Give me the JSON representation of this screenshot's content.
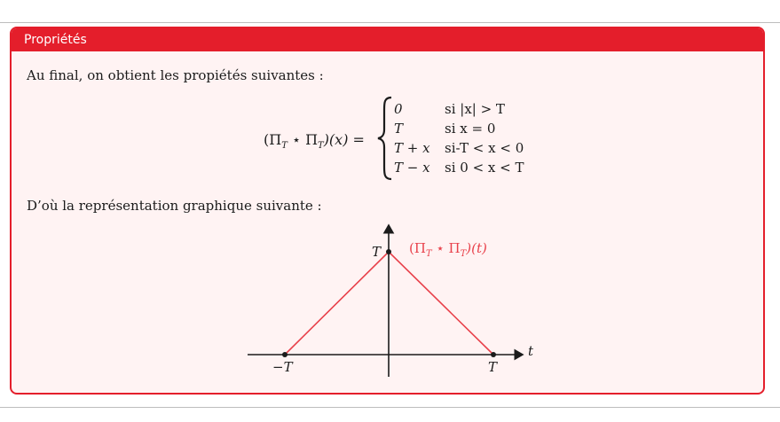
{
  "box": {
    "title": "Propriétés",
    "intro": "Au final, on obtient les propiétés suivantes :",
    "repr": "D’où la représentation graphique suivante :"
  },
  "equation": {
    "lhs_open": "(",
    "lhs_pi": "Π",
    "lhs_sub": "T",
    "lhs_star": " ⋆ ",
    "lhs_close": ")(x) = ",
    "cases": [
      {
        "value": "0",
        "condition": "si |x| > T"
      },
      {
        "value": "T",
        "condition": "si x = 0"
      },
      {
        "value": "T + x",
        "condition": "si-T < x < 0"
      },
      {
        "value": "T − x",
        "condition": "si 0 < x < T"
      }
    ]
  },
  "graph": {
    "axis_label_x": "t",
    "label_peak": "T",
    "label_left": "−T",
    "label_right": "T",
    "curve_label": "(Π",
    "curve_label_sub": "T",
    "curve_label_mid": " ⋆ Π",
    "curve_label_sub2": "T",
    "curve_label_end": ")(t)",
    "curve_color": "#e8404a",
    "axis_color": "#1b1b1b"
  },
  "colors": {
    "accent": "#e41e2b",
    "box_background": "#fff3f3"
  }
}
